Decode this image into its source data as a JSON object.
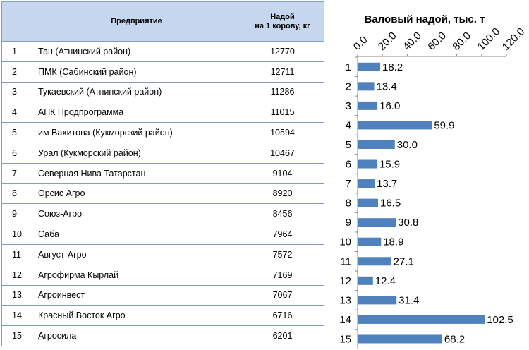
{
  "table": {
    "headers": [
      "",
      "Предприятие",
      "Надой\nна 1 корову, кг"
    ],
    "rows": [
      {
        "n": "1",
        "name": "Тан (Атнинский район)",
        "value": "12770"
      },
      {
        "n": "2",
        "name": "ПМК (Сабинский район)",
        "value": "12711"
      },
      {
        "n": "3",
        "name": "Тукаевский (Атнинский район)",
        "value": "11286"
      },
      {
        "n": "4",
        "name": "АПК Продпрограмма",
        "value": "11015"
      },
      {
        "n": "5",
        "name": "им Вахитова (Кукморский район)",
        "value": "10594"
      },
      {
        "n": "6",
        "name": "Урал (Кукморский район)",
        "value": "10467"
      },
      {
        "n": "7",
        "name": "Северная Нива Татарстан",
        "value": "9104"
      },
      {
        "n": "8",
        "name": "Орсис Агро",
        "value": "8920"
      },
      {
        "n": "9",
        "name": "Союз-Агро",
        "value": "8456"
      },
      {
        "n": "10",
        "name": "Саба",
        "value": "7964"
      },
      {
        "n": "11",
        "name": "Август-Агро",
        "value": "7572"
      },
      {
        "n": "12",
        "name": "Агрофирма Кырлай",
        "value": "7169"
      },
      {
        "n": "13",
        "name": "Агроинвест",
        "value": "7067"
      },
      {
        "n": "14",
        "name": "Красный Восток Агро",
        "value": "6716"
      },
      {
        "n": "15",
        "name": "Агросила",
        "value": "6201"
      }
    ]
  },
  "chart_data": {
    "type": "bar",
    "orientation": "horizontal",
    "title": "Валовый надой, тыс. т",
    "categories": [
      "1",
      "2",
      "3",
      "4",
      "5",
      "6",
      "7",
      "8",
      "9",
      "10",
      "11",
      "12",
      "13",
      "14",
      "15"
    ],
    "values": [
      18.2,
      13.4,
      16.0,
      59.9,
      30.0,
      15.9,
      13.7,
      16.5,
      30.8,
      18.9,
      27.1,
      12.4,
      31.4,
      102.5,
      68.2
    ],
    "xlim": [
      0,
      120
    ],
    "ticks": [
      "0.0",
      "20.0",
      "40.0",
      "60.0",
      "80.0",
      "100.0",
      "120.0"
    ],
    "tick_values": [
      0,
      20,
      40,
      60,
      80,
      100,
      120
    ],
    "axis_position": "top",
    "grid": false,
    "legend": "none",
    "bar_color": "#4f81bd"
  }
}
